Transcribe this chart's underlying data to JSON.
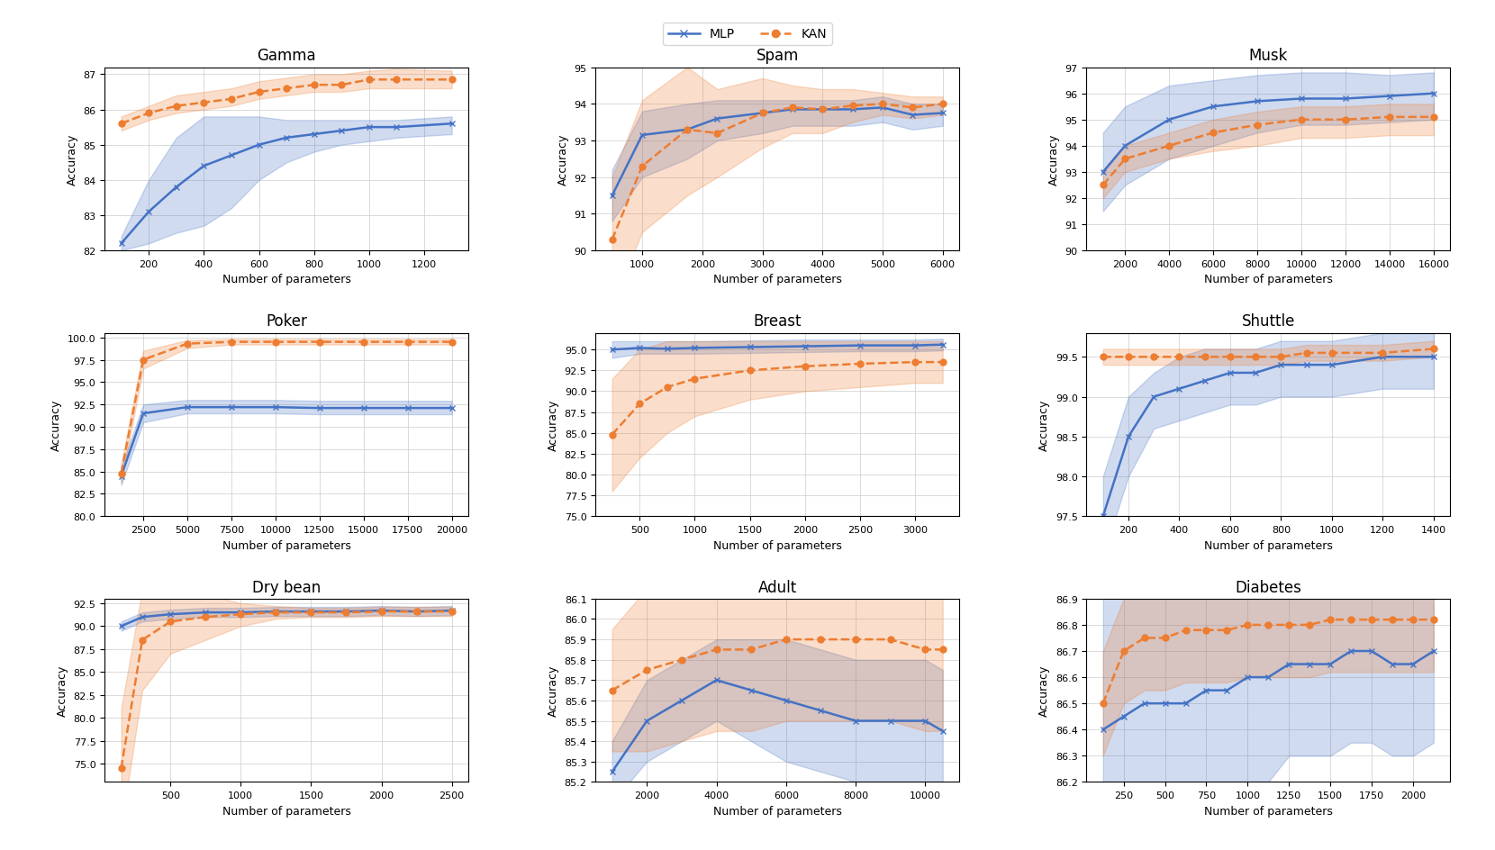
{
  "mlp_color": "#4472c4",
  "kan_color": "#ed7d31",
  "mlp_fill_alpha": 0.25,
  "kan_fill_alpha": 0.25,
  "mlp_label": "MLP",
  "kan_label": "KAN",
  "subplots": [
    {
      "title": "Gamma",
      "xlabel": "Number of parameters",
      "ylabel": "Accuracy",
      "mlp_x": [
        100,
        200,
        300,
        400,
        500,
        600,
        700,
        800,
        900,
        1000,
        1100,
        1300
      ],
      "mlp_y": [
        82.2,
        83.1,
        83.8,
        84.4,
        84.7,
        85.0,
        85.2,
        85.3,
        85.4,
        85.5,
        85.5,
        85.6
      ],
      "mlp_y_lo": [
        82.0,
        82.2,
        82.5,
        82.7,
        83.2,
        84.0,
        84.5,
        84.8,
        85.0,
        85.1,
        85.2,
        85.3
      ],
      "mlp_y_hi": [
        82.4,
        84.0,
        85.2,
        85.8,
        85.8,
        85.8,
        85.7,
        85.7,
        85.7,
        85.7,
        85.7,
        85.8
      ],
      "kan_x": [
        100,
        200,
        300,
        400,
        500,
        600,
        700,
        800,
        900,
        1000,
        1100,
        1300
      ],
      "kan_y": [
        85.6,
        85.9,
        86.1,
        86.2,
        86.3,
        86.5,
        86.6,
        86.7,
        86.7,
        86.85,
        86.85,
        86.85
      ],
      "kan_y_lo": [
        85.4,
        85.7,
        85.9,
        86.0,
        86.1,
        86.3,
        86.4,
        86.5,
        86.5,
        86.6,
        86.6,
        86.6
      ],
      "kan_y_hi": [
        85.8,
        86.1,
        86.4,
        86.5,
        86.6,
        86.8,
        86.9,
        87.0,
        87.0,
        87.1,
        87.15,
        87.1
      ],
      "ylim": [
        82,
        87.2
      ],
      "xticks": [
        200,
        400,
        600,
        800,
        1000,
        1200
      ]
    },
    {
      "title": "Spam",
      "xlabel": "Number of parameters",
      "ylabel": "Accuracy",
      "mlp_x": [
        500,
        1000,
        1750,
        2250,
        3000,
        3500,
        4000,
        4500,
        5000,
        5500,
        6000
      ],
      "mlp_y": [
        91.5,
        93.15,
        93.3,
        93.6,
        93.75,
        93.85,
        93.85,
        93.85,
        93.9,
        93.7,
        93.75
      ],
      "mlp_y_lo": [
        90.8,
        92.0,
        92.5,
        93.0,
        93.2,
        93.4,
        93.4,
        93.4,
        93.5,
        93.3,
        93.4
      ],
      "mlp_y_hi": [
        92.2,
        93.8,
        94.0,
        94.1,
        94.1,
        94.1,
        94.1,
        94.1,
        94.2,
        94.0,
        94.0
      ],
      "kan_x": [
        500,
        1000,
        1750,
        2250,
        3000,
        3500,
        4000,
        4500,
        5000,
        5500,
        6000
      ],
      "kan_y": [
        90.3,
        92.3,
        93.3,
        93.2,
        93.75,
        93.9,
        93.85,
        93.95,
        94.0,
        93.9,
        94.0
      ],
      "kan_y_lo": [
        88.5,
        90.5,
        91.5,
        92.0,
        92.8,
        93.2,
        93.2,
        93.5,
        93.7,
        93.6,
        93.7
      ],
      "kan_y_hi": [
        92.0,
        94.1,
        95.0,
        94.4,
        94.7,
        94.5,
        94.4,
        94.4,
        94.3,
        94.2,
        94.2
      ],
      "ylim": [
        90,
        95
      ],
      "xticks": [
        1000,
        2000,
        3000,
        4000,
        5000,
        6000
      ]
    },
    {
      "title": "Musk",
      "xlabel": "Number of parameters",
      "ylabel": "Accuracy",
      "mlp_x": [
        1000,
        2000,
        4000,
        6000,
        8000,
        10000,
        12000,
        14000,
        16000
      ],
      "mlp_y": [
        93.0,
        94.0,
        95.0,
        95.5,
        95.7,
        95.8,
        95.8,
        95.9,
        96.0
      ],
      "mlp_y_lo": [
        91.5,
        92.5,
        93.5,
        94.0,
        94.5,
        94.8,
        94.8,
        94.9,
        95.0
      ],
      "mlp_y_hi": [
        94.5,
        95.5,
        96.3,
        96.5,
        96.7,
        96.8,
        96.8,
        96.7,
        96.8
      ],
      "kan_x": [
        1000,
        2000,
        4000,
        6000,
        8000,
        10000,
        12000,
        14000,
        16000
      ],
      "kan_y": [
        92.5,
        93.5,
        94.0,
        94.5,
        94.8,
        95.0,
        95.0,
        95.1,
        95.1
      ],
      "kan_y_lo": [
        92.0,
        93.0,
        93.5,
        93.8,
        94.0,
        94.3,
        94.3,
        94.4,
        94.4
      ],
      "kan_y_hi": [
        93.0,
        94.0,
        94.5,
        95.0,
        95.3,
        95.5,
        95.5,
        95.6,
        95.6
      ],
      "ylim": [
        90,
        97
      ],
      "xticks": [
        2000,
        4000,
        6000,
        8000,
        10000,
        12000,
        14000,
        16000
      ]
    },
    {
      "title": "Poker",
      "xlabel": "Number of parameters",
      "ylabel": "Accuracy",
      "mlp_x": [
        1250,
        2500,
        5000,
        7500,
        10000,
        12500,
        15000,
        17500,
        20000
      ],
      "mlp_y": [
        84.5,
        91.5,
        92.2,
        92.2,
        92.2,
        92.1,
        92.1,
        92.1,
        92.1
      ],
      "mlp_y_lo": [
        83.5,
        90.5,
        91.5,
        91.5,
        91.5,
        91.4,
        91.4,
        91.4,
        91.4
      ],
      "mlp_y_hi": [
        85.5,
        92.5,
        93.0,
        93.0,
        93.0,
        92.9,
        92.9,
        92.9,
        92.9
      ],
      "kan_x": [
        1250,
        2500,
        5000,
        7500,
        10000,
        12500,
        15000,
        17500,
        20000
      ],
      "kan_y": [
        84.8,
        97.5,
        99.3,
        99.5,
        99.5,
        99.5,
        99.5,
        99.5,
        99.5
      ],
      "kan_y_lo": [
        83.8,
        96.5,
        98.8,
        99.2,
        99.2,
        99.2,
        99.2,
        99.2,
        99.2
      ],
      "kan_y_hi": [
        85.8,
        98.5,
        99.7,
        99.8,
        99.8,
        99.8,
        99.8,
        99.8,
        99.8
      ],
      "ylim": [
        80,
        100.5
      ],
      "xticks": [
        2500,
        5000,
        7500,
        10000,
        12500,
        15000,
        17500,
        20000
      ]
    },
    {
      "title": "Breast",
      "xlabel": "Number of parameters",
      "ylabel": "Accuracy",
      "mlp_x": [
        250,
        500,
        750,
        1000,
        1500,
        2000,
        2500,
        3000,
        3250
      ],
      "mlp_y": [
        95.0,
        95.2,
        95.1,
        95.2,
        95.3,
        95.4,
        95.5,
        95.5,
        95.6
      ],
      "mlp_y_lo": [
        94.0,
        94.5,
        94.5,
        94.5,
        94.6,
        94.7,
        94.8,
        94.8,
        94.9
      ],
      "mlp_y_hi": [
        96.0,
        96.0,
        96.0,
        96.0,
        96.1,
        96.2,
        96.2,
        96.2,
        96.3
      ],
      "kan_x": [
        250,
        500,
        750,
        1000,
        1500,
        2000,
        2500,
        3000,
        3250
      ],
      "kan_y": [
        84.8,
        88.5,
        90.5,
        91.5,
        92.5,
        93.0,
        93.3,
        93.5,
        93.5
      ],
      "kan_y_lo": [
        78.0,
        82.0,
        85.0,
        87.0,
        89.0,
        90.0,
        90.5,
        91.0,
        91.0
      ],
      "kan_y_hi": [
        91.5,
        95.0,
        96.0,
        96.0,
        96.0,
        96.0,
        96.0,
        96.0,
        96.0
      ],
      "ylim": [
        75,
        97
      ],
      "xticks": [
        500,
        1000,
        1500,
        2000,
        2500,
        3000
      ]
    },
    {
      "title": "Shuttle",
      "xlabel": "Number of parameters",
      "ylabel": "Accuracy",
      "mlp_x": [
        100,
        200,
        300,
        400,
        500,
        600,
        700,
        800,
        900,
        1000,
        1200,
        1400
      ],
      "mlp_y": [
        97.5,
        98.5,
        99.0,
        99.1,
        99.2,
        99.3,
        99.3,
        99.4,
        99.4,
        99.4,
        99.5,
        99.5
      ],
      "mlp_y_lo": [
        97.0,
        98.0,
        98.6,
        98.7,
        98.8,
        98.9,
        98.9,
        99.0,
        99.0,
        99.0,
        99.1,
        99.1
      ],
      "mlp_y_hi": [
        98.0,
        99.0,
        99.3,
        99.5,
        99.6,
        99.6,
        99.6,
        99.7,
        99.7,
        99.7,
        99.8,
        99.8
      ],
      "kan_x": [
        100,
        200,
        300,
        400,
        500,
        600,
        700,
        800,
        900,
        1000,
        1200,
        1400
      ],
      "kan_y": [
        99.5,
        99.5,
        99.5,
        99.5,
        99.5,
        99.5,
        99.5,
        99.5,
        99.55,
        99.55,
        99.55,
        99.6
      ],
      "kan_y_lo": [
        99.4,
        99.4,
        99.4,
        99.4,
        99.4,
        99.4,
        99.4,
        99.4,
        99.45,
        99.45,
        99.45,
        99.5
      ],
      "kan_y_hi": [
        99.6,
        99.6,
        99.6,
        99.6,
        99.6,
        99.6,
        99.6,
        99.6,
        99.65,
        99.65,
        99.65,
        99.7
      ],
      "ylim": [
        97.5,
        99.8
      ],
      "xticks": [
        200,
        400,
        600,
        800,
        1000,
        1200,
        1400
      ]
    },
    {
      "title": "Dry bean",
      "xlabel": "Number of parameters",
      "ylabel": "Accuracy",
      "mlp_x": [
        150,
        300,
        500,
        750,
        1000,
        1250,
        1500,
        1750,
        2000,
        2250,
        2500
      ],
      "mlp_y": [
        90.0,
        91.0,
        91.3,
        91.5,
        91.5,
        91.6,
        91.6,
        91.6,
        91.7,
        91.6,
        91.7
      ],
      "mlp_y_lo": [
        89.5,
        90.5,
        90.8,
        91.0,
        91.0,
        91.1,
        91.1,
        91.1,
        91.2,
        91.1,
        91.2
      ],
      "mlp_y_hi": [
        90.5,
        91.5,
        91.8,
        92.0,
        92.0,
        92.1,
        92.1,
        92.1,
        92.2,
        92.1,
        92.2
      ],
      "kan_x": [
        150,
        300,
        500,
        750,
        1000,
        1250,
        1500,
        1750,
        2000,
        2250,
        2500
      ],
      "kan_y": [
        74.5,
        88.5,
        90.5,
        91.0,
        91.3,
        91.5,
        91.5,
        91.5,
        91.6,
        91.6,
        91.6
      ],
      "kan_y_lo": [
        68.0,
        83.0,
        87.0,
        88.5,
        90.0,
        90.8,
        91.0,
        91.0,
        91.1,
        91.1,
        91.1
      ],
      "kan_y_hi": [
        81.0,
        94.0,
        94.0,
        93.5,
        92.5,
        92.2,
        92.0,
        92.0,
        92.1,
        92.1,
        92.1
      ],
      "ylim": [
        73,
        93
      ],
      "xticks": [
        500,
        1000,
        1500,
        2000,
        2500
      ]
    },
    {
      "title": "Adult",
      "xlabel": "Number of parameters",
      "ylabel": "Accuracy",
      "mlp_x": [
        1000,
        2000,
        3000,
        4000,
        5000,
        6000,
        7000,
        8000,
        9000,
        10000,
        10500
      ],
      "mlp_y": [
        85.25,
        85.5,
        85.6,
        85.7,
        85.65,
        85.6,
        85.55,
        85.5,
        85.5,
        85.5,
        85.45
      ],
      "mlp_y_lo": [
        85.1,
        85.3,
        85.4,
        85.5,
        85.4,
        85.3,
        85.25,
        85.2,
        85.2,
        85.2,
        85.15
      ],
      "mlp_y_hi": [
        85.4,
        85.7,
        85.8,
        85.9,
        85.9,
        85.9,
        85.85,
        85.8,
        85.8,
        85.8,
        85.75
      ],
      "kan_x": [
        1000,
        2000,
        3000,
        4000,
        5000,
        6000,
        7000,
        8000,
        9000,
        10000,
        10500
      ],
      "kan_y": [
        85.65,
        85.75,
        85.8,
        85.85,
        85.85,
        85.9,
        85.9,
        85.9,
        85.9,
        85.85,
        85.85
      ],
      "kan_y_lo": [
        85.35,
        85.35,
        85.4,
        85.45,
        85.45,
        85.5,
        85.5,
        85.5,
        85.5,
        85.45,
        85.45
      ],
      "kan_y_hi": [
        85.95,
        86.15,
        86.2,
        86.25,
        86.25,
        86.3,
        86.3,
        86.3,
        86.3,
        86.25,
        86.25
      ],
      "ylim": [
        85.2,
        86.1
      ],
      "xticks": [
        2000,
        4000,
        6000,
        8000,
        10000
      ]
    },
    {
      "title": "Diabetes",
      "xlabel": "Number of parameters",
      "ylabel": "Accuracy",
      "mlp_x": [
        125,
        250,
        375,
        500,
        625,
        750,
        875,
        1000,
        1125,
        1250,
        1375,
        1500,
        1625,
        1750,
        1875,
        2000,
        2125
      ],
      "mlp_y": [
        86.4,
        86.45,
        86.5,
        86.5,
        86.5,
        86.55,
        86.55,
        86.6,
        86.6,
        86.65,
        86.65,
        86.65,
        86.7,
        86.7,
        86.65,
        86.65,
        86.7
      ],
      "mlp_y_lo": [
        85.5,
        85.5,
        85.8,
        85.9,
        86.0,
        86.1,
        86.1,
        86.2,
        86.2,
        86.3,
        86.3,
        86.3,
        86.35,
        86.35,
        86.3,
        86.3,
        86.35
      ],
      "mlp_y_hi": [
        87.3,
        87.4,
        87.2,
        87.1,
        87.0,
        87.0,
        87.0,
        87.0,
        87.0,
        87.0,
        87.0,
        87.0,
        87.05,
        87.05,
        87.0,
        87.0,
        87.05
      ],
      "kan_x": [
        125,
        250,
        375,
        500,
        625,
        750,
        875,
        1000,
        1125,
        1250,
        1375,
        1500,
        1625,
        1750,
        1875,
        2000,
        2125
      ],
      "kan_y": [
        86.5,
        86.7,
        86.75,
        86.75,
        86.78,
        86.78,
        86.78,
        86.8,
        86.8,
        86.8,
        86.8,
        86.82,
        86.82,
        86.82,
        86.82,
        86.82,
        86.82
      ],
      "kan_y_lo": [
        86.3,
        86.5,
        86.55,
        86.55,
        86.58,
        86.58,
        86.58,
        86.6,
        86.6,
        86.6,
        86.6,
        86.62,
        86.62,
        86.62,
        86.62,
        86.62,
        86.62
      ],
      "kan_y_hi": [
        86.7,
        86.9,
        86.95,
        86.95,
        86.98,
        86.98,
        86.98,
        87.0,
        87.0,
        87.0,
        87.0,
        87.02,
        87.02,
        87.02,
        87.02,
        87.02,
        87.02
      ],
      "ylim": [
        86.2,
        86.9
      ],
      "xticks": [
        250,
        500,
        750,
        1000,
        1250,
        1500,
        1750,
        2000
      ]
    }
  ]
}
